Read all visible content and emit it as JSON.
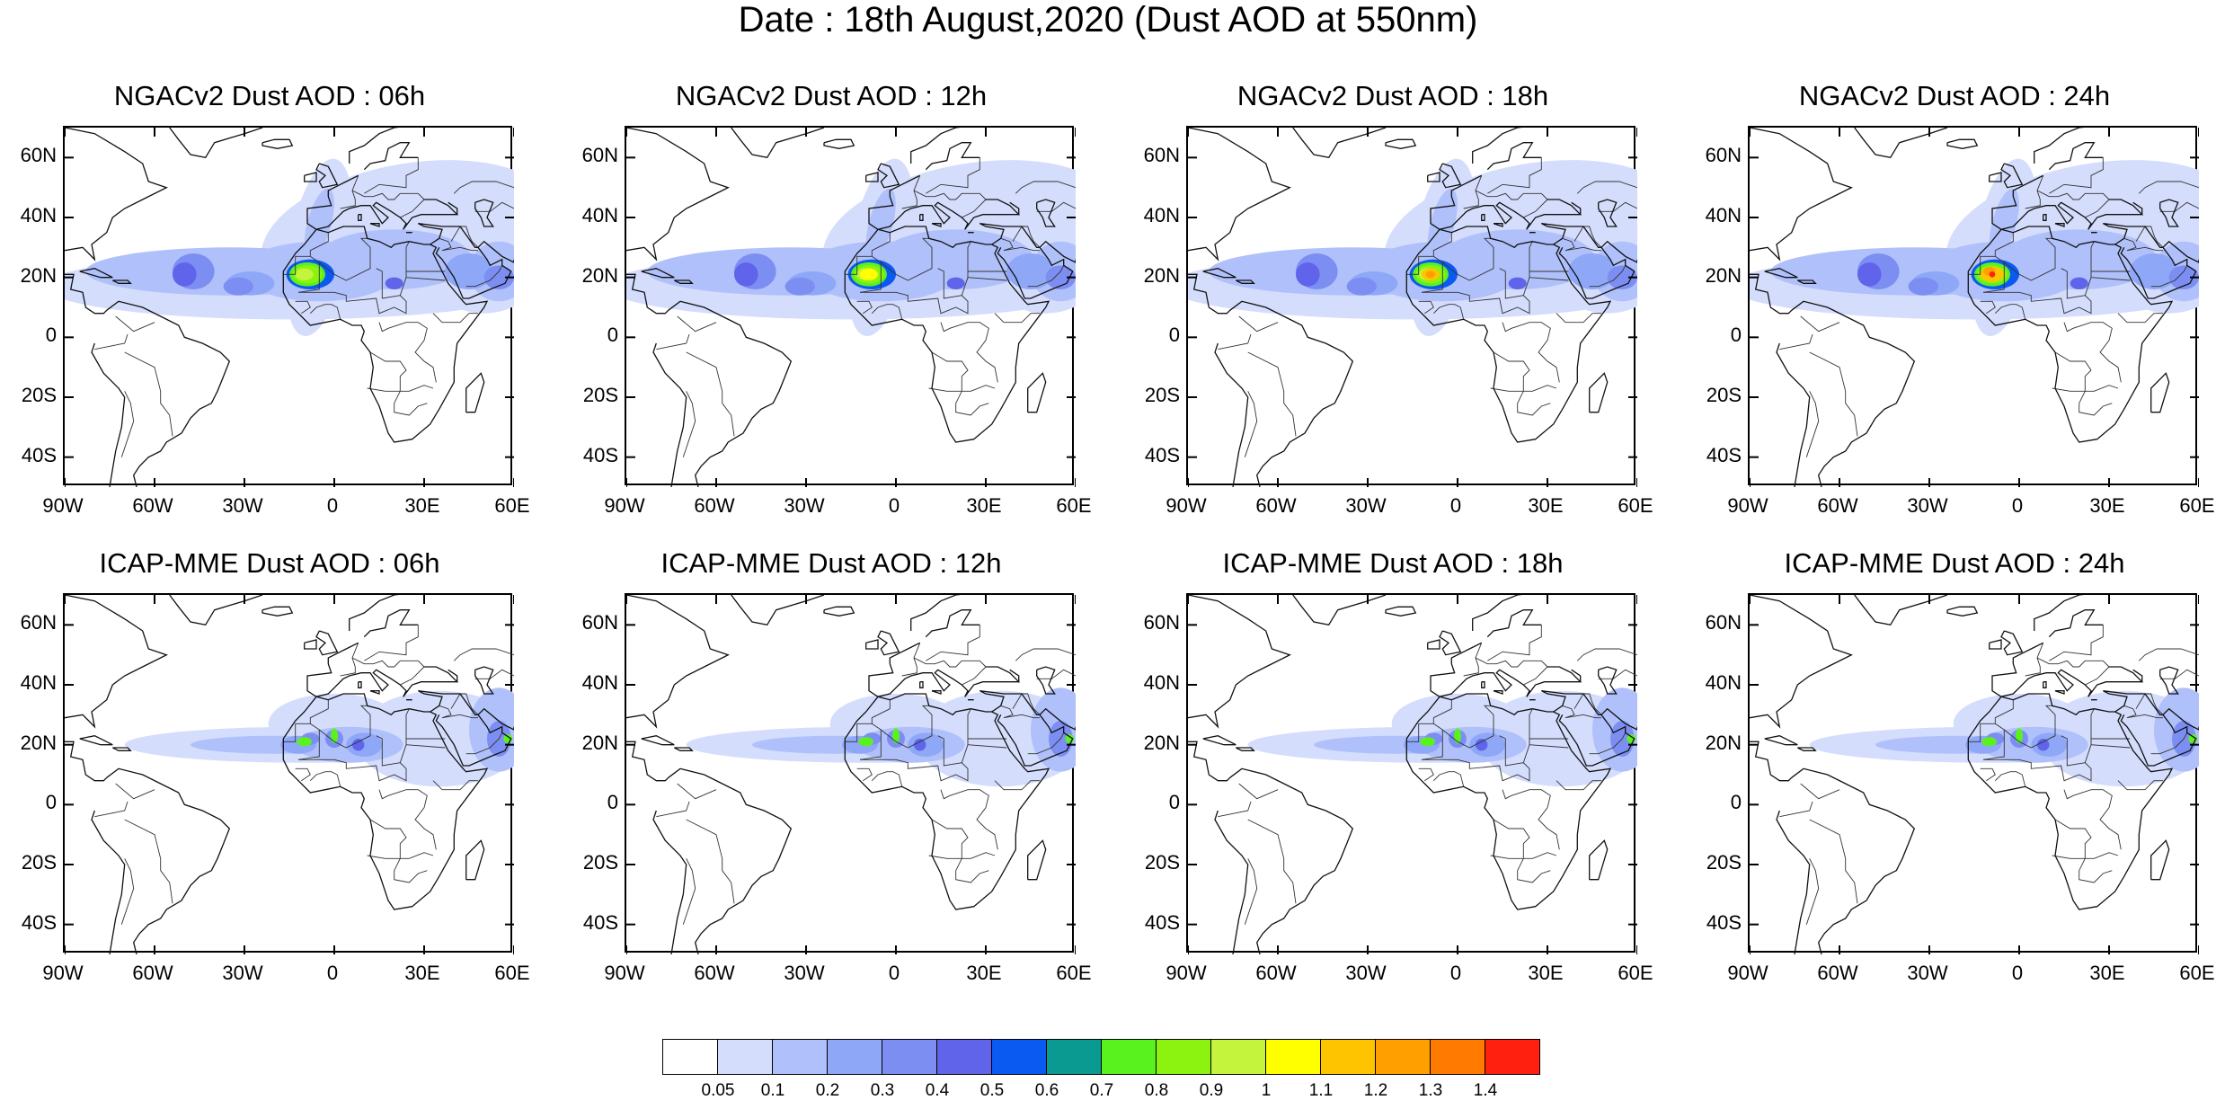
{
  "title": "Date : 18th August,2020 (Dust AOD at 550nm)",
  "lat_labels": [
    "60N",
    "40N",
    "20N",
    "0",
    "20S",
    "40S"
  ],
  "lat_values": [
    60,
    40,
    20,
    0,
    -20,
    -40
  ],
  "lon_labels": [
    "90W",
    "60W",
    "30W",
    "0",
    "30E",
    "60E"
  ],
  "lon_values": [
    -90,
    -60,
    -30,
    0,
    30,
    60
  ],
  "map_extent": {
    "lon": [
      -90,
      60
    ],
    "lat": [
      -50,
      70
    ]
  },
  "panels": [
    {
      "title": "NGACv2 Dust AOD : 06h",
      "model": "NGACv2",
      "hour": "06h"
    },
    {
      "title": "NGACv2 Dust AOD : 12h",
      "model": "NGACv2",
      "hour": "12h"
    },
    {
      "title": "NGACv2 Dust AOD : 18h",
      "model": "NGACv2",
      "hour": "18h"
    },
    {
      "title": "NGACv2 Dust AOD : 24h",
      "model": "NGACv2",
      "hour": "24h"
    },
    {
      "title": "ICAP-MME Dust AOD : 06h",
      "model": "ICAP-MME",
      "hour": "06h"
    },
    {
      "title": "ICAP-MME Dust AOD : 12h",
      "model": "ICAP-MME",
      "hour": "12h"
    },
    {
      "title": "ICAP-MME Dust AOD : 18h",
      "model": "ICAP-MME",
      "hour": "18h"
    },
    {
      "title": "ICAP-MME Dust AOD : 24h",
      "model": "ICAP-MME",
      "hour": "24h"
    }
  ],
  "colorbar": {
    "colors": [
      "#ffffff",
      "#d4ddfc",
      "#b0c0fa",
      "#8ea7f7",
      "#7d8ef2",
      "#5f64ea",
      "#0a5af2",
      "#0a9a92",
      "#5af21e",
      "#8cf20f",
      "#c4f53c",
      "#ffff00",
      "#ffc400",
      "#ffa000",
      "#ff7a00",
      "#ff2010"
    ],
    "labels": [
      "0.05",
      "0.1",
      "0.2",
      "0.3",
      "0.4",
      "0.5",
      "0.6",
      "0.7",
      "0.8",
      "0.9",
      "1",
      "1.1",
      "1.2",
      "1.3",
      "1.4"
    ]
  }
}
